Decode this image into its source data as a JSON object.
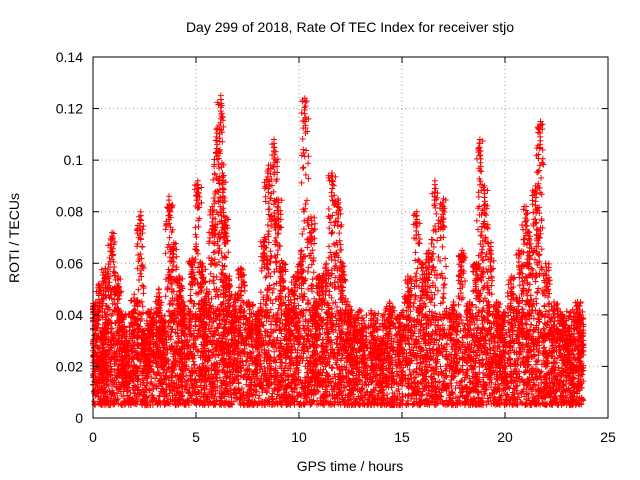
{
  "chart_data": {
    "type": "scatter",
    "title": "Day 299 of 2018, Rate Of TEC Index for receiver stjo",
    "xlabel": "GPS time / hours",
    "ylabel": "ROTI / TECUs",
    "xlim": [
      0,
      25
    ],
    "ylim": [
      0,
      0.14
    ],
    "xticks": [
      0,
      5,
      10,
      15,
      20,
      25
    ],
    "xtick_labels": [
      "0",
      "5",
      "10",
      "15",
      "20",
      "25"
    ],
    "yticks": [
      0,
      0.02,
      0.04,
      0.06,
      0.08,
      0.1,
      0.12,
      0.14
    ],
    "ytick_labels": [
      "0",
      "0.02",
      "0.04",
      "0.06",
      "0.08",
      "0.1",
      "0.12",
      "0.14"
    ],
    "grid": true,
    "marker": "+",
    "color": "#ff0000",
    "series": [
      {
        "name": "ROTI",
        "x": [
          0.1,
          0.3,
          0.5,
          0.6,
          0.9,
          1.2,
          1.4,
          1.6,
          2.0,
          2.3,
          2.5,
          2.8,
          3.2,
          3.4,
          3.7,
          3.9,
          4.2,
          4.4,
          4.8,
          5.1,
          5.3,
          5.5,
          5.8,
          6.0,
          6.2,
          6.3,
          6.4,
          6.6,
          6.9,
          7.2,
          7.6,
          8.0,
          8.3,
          8.5,
          8.8,
          9.0,
          9.2,
          9.5,
          9.8,
          10.1,
          10.3,
          10.6,
          10.8,
          11.0,
          11.3,
          11.6,
          11.9,
          12.1,
          12.4,
          12.7,
          13.1,
          13.6,
          14.0,
          14.4,
          14.9,
          15.3,
          15.7,
          16.0,
          16.3,
          16.6,
          17.0,
          17.5,
          17.9,
          18.3,
          18.6,
          18.8,
          19.0,
          19.3,
          19.6,
          19.9,
          20.3,
          20.7,
          21.0,
          21.2,
          21.5,
          21.7,
          22.0,
          22.4,
          22.8,
          23.1,
          23.5,
          23.7
        ],
        "y": [
          0.045,
          0.052,
          0.035,
          0.058,
          0.072,
          0.055,
          0.04,
          0.03,
          0.048,
          0.08,
          0.034,
          0.042,
          0.05,
          0.038,
          0.086,
          0.068,
          0.055,
          0.045,
          0.062,
          0.092,
          0.06,
          0.05,
          0.082,
          0.112,
          0.125,
          0.095,
          0.078,
          0.055,
          0.048,
          0.058,
          0.045,
          0.04,
          0.07,
          0.098,
          0.108,
          0.085,
          0.06,
          0.05,
          0.055,
          0.065,
          0.124,
          0.078,
          0.045,
          0.055,
          0.06,
          0.095,
          0.085,
          0.06,
          0.045,
          0.04,
          0.035,
          0.038,
          0.03,
          0.045,
          0.04,
          0.055,
          0.08,
          0.06,
          0.065,
          0.092,
          0.085,
          0.045,
          0.065,
          0.045,
          0.06,
          0.108,
          0.09,
          0.068,
          0.045,
          0.04,
          0.055,
          0.065,
          0.082,
          0.072,
          0.09,
          0.115,
          0.06,
          0.045,
          0.04,
          0.035,
          0.045,
          0.04
        ],
        "baseline_range": [
          0.005,
          0.03
        ]
      }
    ]
  }
}
